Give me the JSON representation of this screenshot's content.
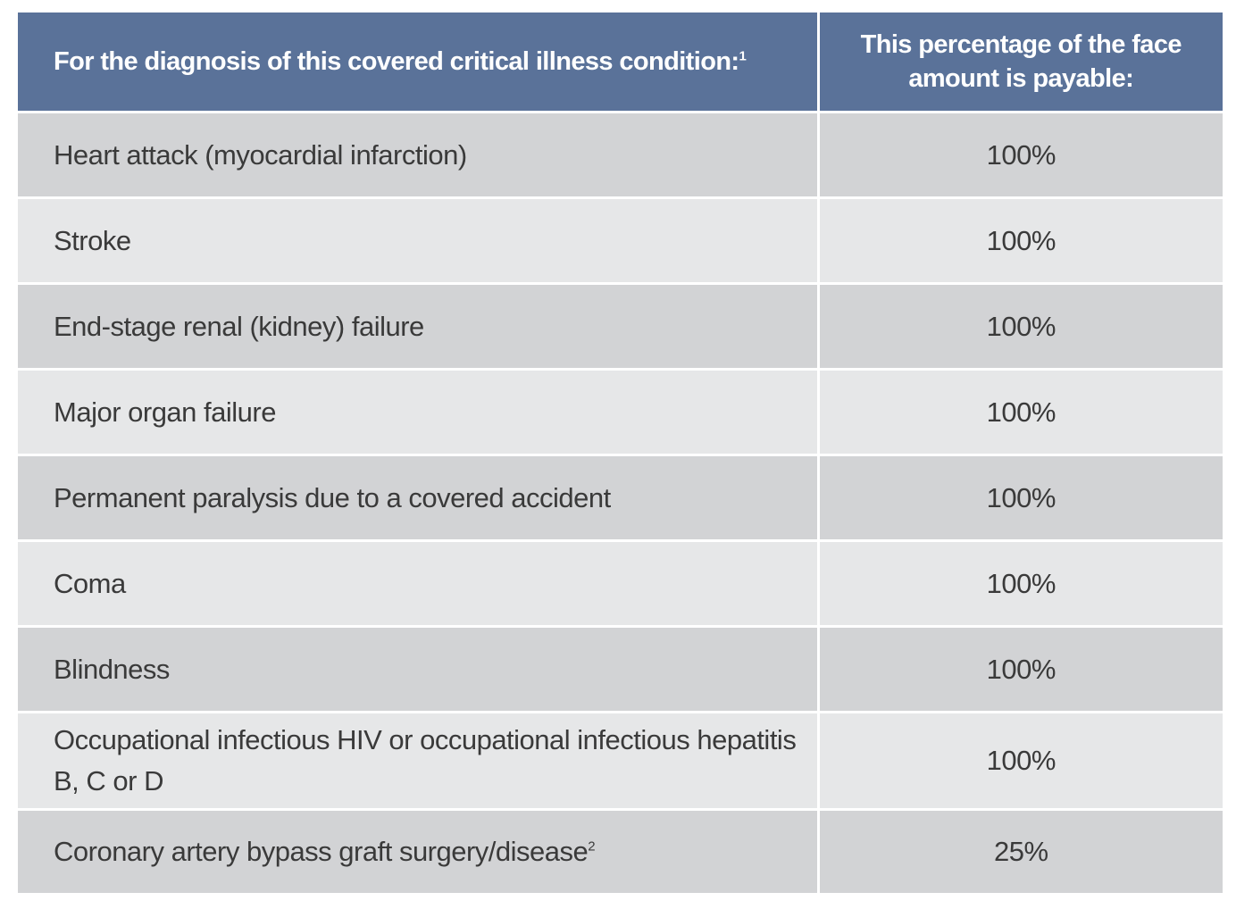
{
  "header": {
    "condition_col": "For the diagnosis of this covered critical illness condition:",
    "condition_col_footnote": "1",
    "percentage_col": "This percentage of the face amount is payable:"
  },
  "rows": [
    {
      "condition": "Heart attack (myocardial infarction)",
      "percentage": "100%"
    },
    {
      "condition": "Stroke",
      "percentage": "100%"
    },
    {
      "condition": "End-stage renal (kidney) failure",
      "percentage": "100%"
    },
    {
      "condition": "Major organ failure",
      "percentage": "100%"
    },
    {
      "condition": "Permanent paralysis due to a covered accident",
      "percentage": "100%"
    },
    {
      "condition": "Coma",
      "percentage": "100%"
    },
    {
      "condition": "Blindness",
      "percentage": "100%"
    },
    {
      "condition": "Occupational infectious HIV or occupational infectious hepatitis B, C or D",
      "percentage": "100%"
    },
    {
      "condition": "Coronary artery bypass graft surgery/disease",
      "footnote": "2",
      "percentage": "25%"
    }
  ],
  "colors": {
    "header_bg": "#5a7299",
    "row_dark": "#d2d3d5",
    "row_light": "#e6e7e8"
  }
}
